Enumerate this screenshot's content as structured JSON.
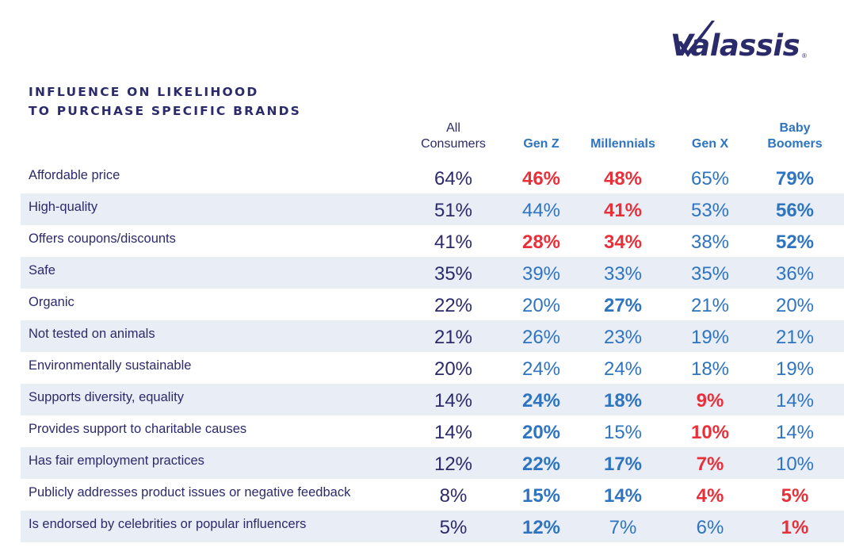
{
  "brand": {
    "name": "Valassis",
    "mark": "®"
  },
  "title": [
    "INFLUENCE ON LIKELIHOOD",
    "TO PURCHASE SPECIFIC BRANDS"
  ],
  "colors": {
    "navy": "#2b2a6b",
    "blue": "#2e74c0",
    "red": "#e8303b",
    "shade": "#e9eef6"
  },
  "chart_data": {
    "type": "table",
    "title": "INFLUENCE ON LIKELIHOOD TO PURCHASE SPECIFIC BRANDS",
    "columns": [
      {
        "lines": [
          "All",
          "Consumers"
        ]
      },
      {
        "lines": [
          "Gen Z"
        ]
      },
      {
        "lines": [
          "Millennials"
        ]
      },
      {
        "lines": [
          "Gen X"
        ]
      },
      {
        "lines": [
          "Baby",
          "Boomers"
        ]
      }
    ],
    "rows": [
      {
        "label": "Affordable price",
        "values": [
          "64%",
          "46%",
          "48%",
          "65%",
          "79%"
        ],
        "styles": [
          "n",
          "r",
          "r",
          "b",
          "B"
        ]
      },
      {
        "label": "High-quality",
        "values": [
          "51%",
          "44%",
          "41%",
          "53%",
          "56%"
        ],
        "styles": [
          "n",
          "b",
          "r",
          "b",
          "B"
        ]
      },
      {
        "label": "Offers coupons/discounts",
        "values": [
          "41%",
          "28%",
          "34%",
          "38%",
          "52%"
        ],
        "styles": [
          "n",
          "r",
          "r",
          "b",
          "B"
        ]
      },
      {
        "label": "Safe",
        "values": [
          "35%",
          "39%",
          "33%",
          "35%",
          "36%"
        ],
        "styles": [
          "n",
          "b",
          "b",
          "b",
          "b"
        ]
      },
      {
        "label": "Organic",
        "values": [
          "22%",
          "20%",
          "27%",
          "21%",
          "20%"
        ],
        "styles": [
          "n",
          "b",
          "B",
          "b",
          "b"
        ]
      },
      {
        "label": "Not tested on animals",
        "values": [
          "21%",
          "26%",
          "23%",
          "19%",
          "21%"
        ],
        "styles": [
          "n",
          "b",
          "b",
          "b",
          "b"
        ]
      },
      {
        "label": "Environmentally sustainable",
        "values": [
          "20%",
          "24%",
          "24%",
          "18%",
          "19%"
        ],
        "styles": [
          "n",
          "b",
          "b",
          "b",
          "b"
        ]
      },
      {
        "label": "Supports diversity, equality",
        "values": [
          "14%",
          "24%",
          "18%",
          "9%",
          "14%"
        ],
        "styles": [
          "n",
          "B",
          "B",
          "r",
          "b"
        ]
      },
      {
        "label": "Provides support to charitable causes",
        "values": [
          "14%",
          "20%",
          "15%",
          "10%",
          "14%"
        ],
        "styles": [
          "n",
          "B",
          "b",
          "r",
          "b"
        ]
      },
      {
        "label": "Has fair employment practices",
        "values": [
          "12%",
          "22%",
          "17%",
          "7%",
          "10%"
        ],
        "styles": [
          "n",
          "B",
          "B",
          "r",
          "b"
        ]
      },
      {
        "label": "Publicly addresses product issues or negative feedback",
        "values": [
          "8%",
          "15%",
          "14%",
          "4%",
          "5%"
        ],
        "styles": [
          "n",
          "B",
          "B",
          "r",
          "r"
        ]
      },
      {
        "label": "Is endorsed by celebrities or popular influencers",
        "values": [
          "5%",
          "12%",
          "7%",
          "6%",
          "1%"
        ],
        "styles": [
          "n",
          "B",
          "b",
          "b",
          "r"
        ]
      }
    ]
  }
}
